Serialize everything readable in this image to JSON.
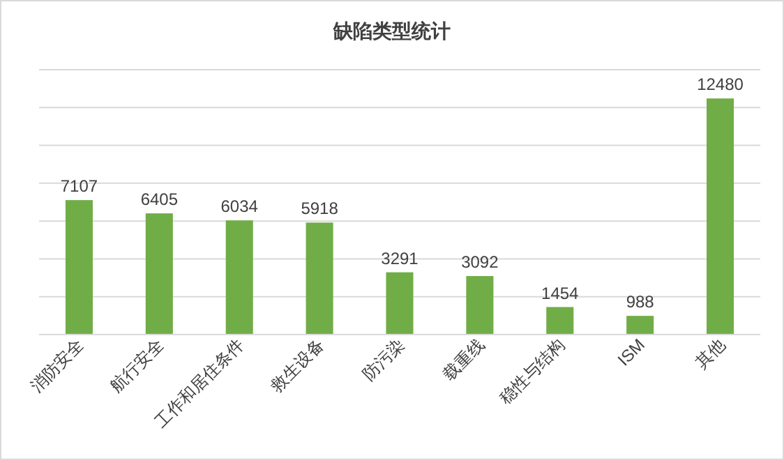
{
  "chart_data": {
    "type": "bar",
    "title": "缺陷类型统计",
    "categories": [
      "消防安全",
      "航行安全",
      "工作和居住条件",
      "救生设备",
      "防污染",
      "载重线",
      "稳性与结构",
      "ISM",
      "其他"
    ],
    "values": [
      7107,
      6405,
      6034,
      5918,
      3291,
      3092,
      1454,
      988,
      12480
    ],
    "color": "#70ad47",
    "data_labels": true,
    "grid": "y",
    "tick_labels": "x",
    "ylim": [
      0,
      14000
    ],
    "yticks": [
      {
        "value": 0,
        "label": null
      },
      {
        "value": 2000,
        "label": null
      },
      {
        "value": 4000,
        "label": null
      },
      {
        "value": 6000,
        "label": null
      },
      {
        "value": 8000,
        "label": null
      },
      {
        "value": 10000,
        "label": null
      },
      {
        "value": 12000,
        "label": null
      },
      {
        "value": 14000,
        "label": null
      }
    ]
  }
}
